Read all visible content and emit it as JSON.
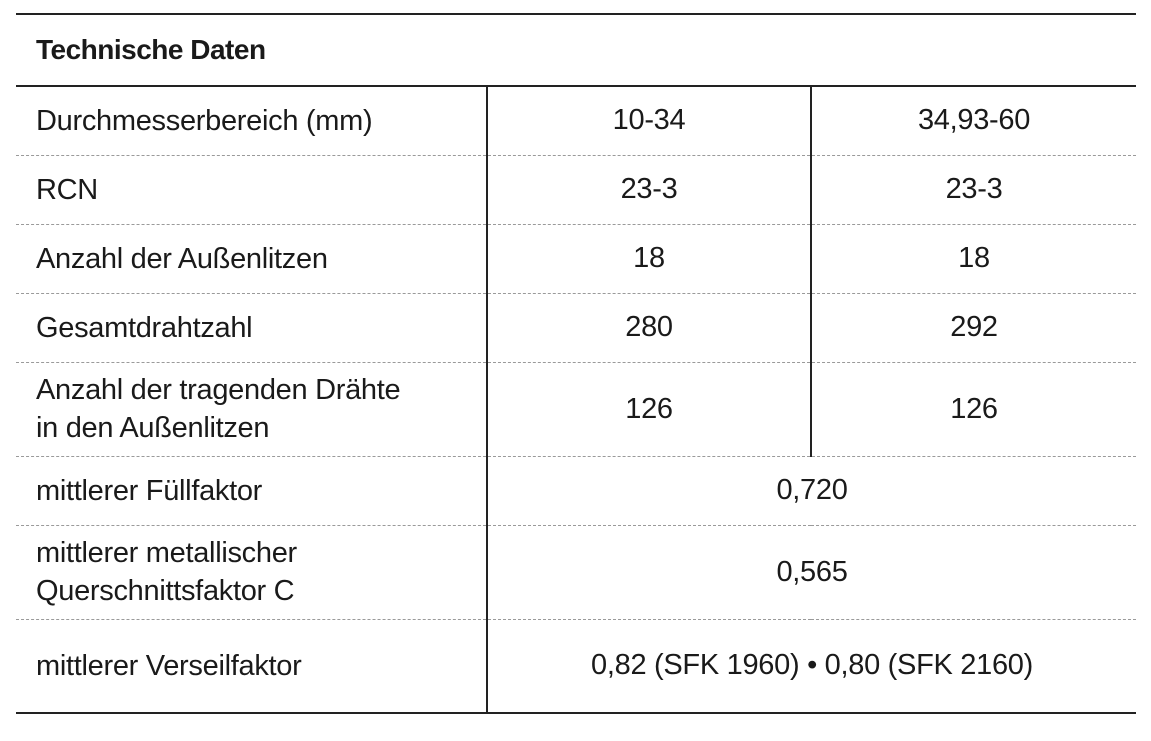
{
  "table": {
    "title": "Technische Daten",
    "rows": [
      {
        "label": "Durchmesserbereich (mm)",
        "values": [
          "10-34",
          "34,93-60"
        ]
      },
      {
        "label": "RCN",
        "values": [
          "23-3",
          "23-3"
        ]
      },
      {
        "label": "Anzahl der Außenlitzen",
        "values": [
          "18",
          "18"
        ]
      },
      {
        "label": "Gesamtdrahtzahl",
        "values": [
          "280",
          "292"
        ]
      },
      {
        "label_lines": [
          "Anzahl der tragenden Drähte",
          "in den Außenlitzen"
        ],
        "values": [
          "126",
          "126"
        ]
      },
      {
        "label": "mittlerer Füllfaktor",
        "value": "0,720"
      },
      {
        "label_lines": [
          "mittlerer metallischer",
          "Querschnittsfaktor C"
        ],
        "value": "0,565"
      },
      {
        "label": "mittlerer Verseilfaktor",
        "value": "0,82 (SFK 1960) • 0,80 (SFK 2160)"
      }
    ]
  }
}
